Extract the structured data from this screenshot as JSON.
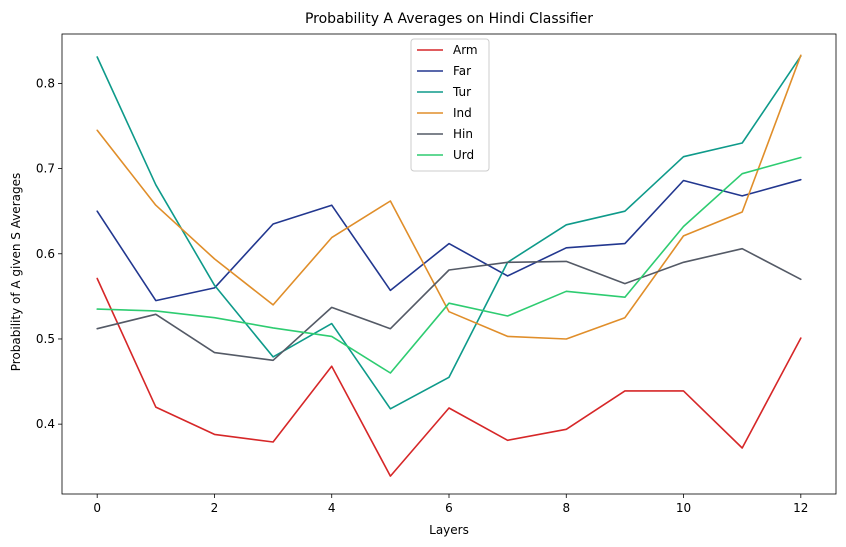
{
  "chart_data": {
    "type": "line",
    "title": "Probability A Averages on Hindi Classifier",
    "xlabel": "Layers",
    "ylabel": "Probability of A given S Averages",
    "x": [
      0,
      1,
      2,
      3,
      4,
      5,
      6,
      7,
      8,
      9,
      10,
      11,
      12
    ],
    "xlim": [
      -0.6,
      12.6
    ],
    "ylim": [
      0.318,
      0.858
    ],
    "xticks": [
      0,
      2,
      4,
      6,
      8,
      10,
      12
    ],
    "yticks": [
      0.4,
      0.5,
      0.6,
      0.7,
      0.8
    ],
    "grid": false,
    "legend_position": "upper-center",
    "series": [
      {
        "name": "Arm",
        "color": "#d62728",
        "values": [
          0.571,
          0.42,
          0.388,
          0.379,
          0.468,
          0.339,
          0.419,
          0.381,
          0.394,
          0.439,
          0.439,
          0.372,
          0.501
        ]
      },
      {
        "name": "Far",
        "color": "#22378f",
        "values": [
          0.65,
          0.545,
          0.56,
          0.635,
          0.657,
          0.557,
          0.612,
          0.574,
          0.607,
          0.612,
          0.686,
          0.668,
          0.687
        ]
      },
      {
        "name": "Tur",
        "color": "#0e9a8a",
        "values": [
          0.831,
          0.681,
          0.563,
          0.479,
          0.518,
          0.418,
          0.455,
          0.59,
          0.634,
          0.65,
          0.714,
          0.73,
          0.832
        ]
      },
      {
        "name": "Ind",
        "color": "#e08e2a",
        "values": [
          0.745,
          0.657,
          0.594,
          0.54,
          0.619,
          0.662,
          0.532,
          0.503,
          0.5,
          0.525,
          0.621,
          0.649,
          0.833
        ]
      },
      {
        "name": "Hin",
        "color": "#545a66",
        "values": [
          0.512,
          0.529,
          0.484,
          0.475,
          0.537,
          0.512,
          0.581,
          0.59,
          0.591,
          0.565,
          0.59,
          0.606,
          0.57
        ]
      },
      {
        "name": "Urd",
        "color": "#2ecc71",
        "values": [
          0.535,
          0.533,
          0.525,
          0.513,
          0.503,
          0.46,
          0.542,
          0.527,
          0.556,
          0.549,
          0.632,
          0.694,
          0.713
        ]
      }
    ]
  }
}
